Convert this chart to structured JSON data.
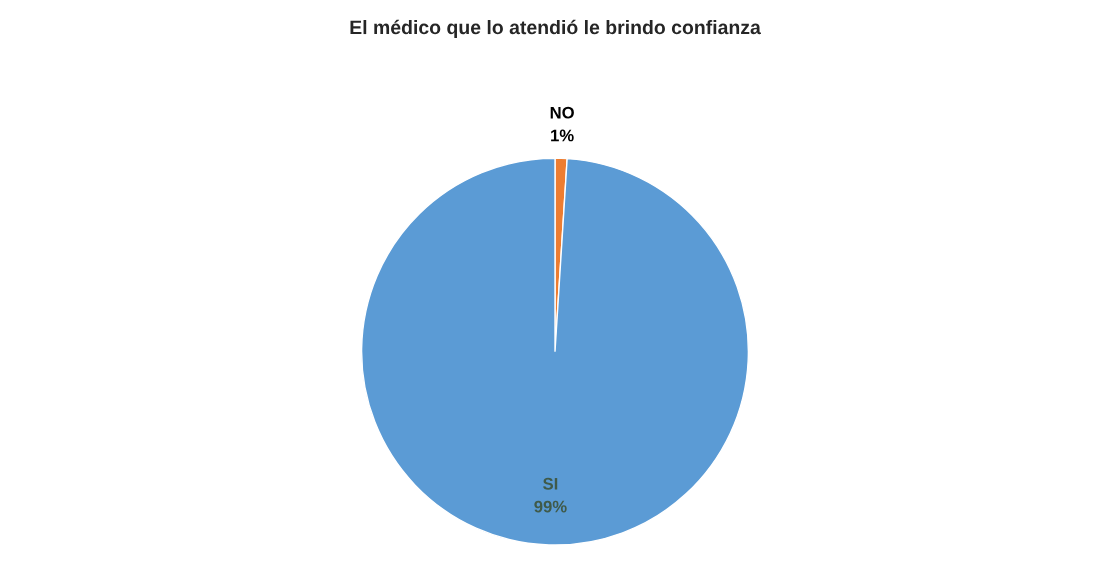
{
  "chart_data": {
    "type": "pie",
    "title": "El médico que lo atendió le brindo confianza",
    "categories": [
      "NO",
      "SI"
    ],
    "values": [
      1,
      99
    ],
    "colors": [
      "#ed7d31",
      "#5b9bd5"
    ],
    "value_labels": [
      "1%",
      "99%"
    ]
  }
}
